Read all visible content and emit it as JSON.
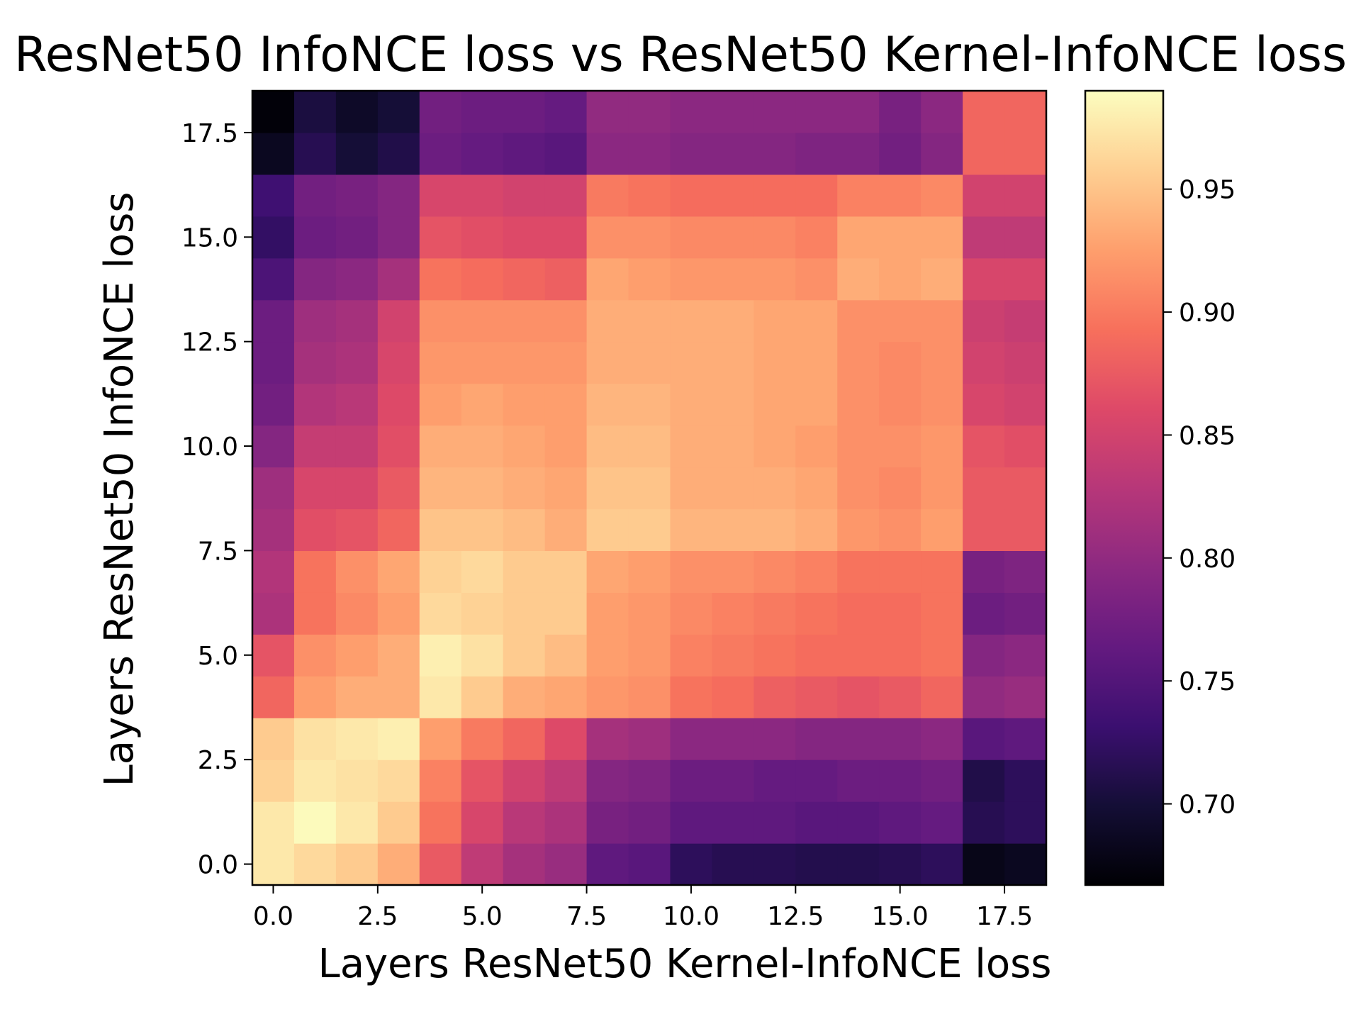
{
  "chart_data": {
    "type": "heatmap",
    "title": "ResNet50 InfoNCE loss vs ResNet50 Kernel-InfoNCE loss",
    "xlabel": "Layers ResNet50 Kernel-InfoNCE loss",
    "ylabel": "Layers ResNet50 InfoNCE loss",
    "colormap": "magma",
    "x_range": [
      -0.5,
      18.5
    ],
    "y_range": [
      -0.5,
      18.5
    ],
    "x_ticks": [
      0.0,
      2.5,
      5.0,
      7.5,
      10.0,
      12.5,
      15.0,
      17.5
    ],
    "x_tick_labels": [
      "0.0",
      "2.5",
      "5.0",
      "7.5",
      "10.0",
      "12.5",
      "15.0",
      "17.5"
    ],
    "y_ticks": [
      0.0,
      2.5,
      5.0,
      7.5,
      10.0,
      12.5,
      15.0,
      17.5
    ],
    "y_tick_labels": [
      "0.0",
      "2.5",
      "5.0",
      "7.5",
      "10.0",
      "12.5",
      "15.0",
      "17.5"
    ],
    "colorbar_range": [
      0.667,
      0.99
    ],
    "colorbar_ticks": [
      0.7,
      0.75,
      0.8,
      0.85,
      0.9,
      0.95
    ],
    "colorbar_tick_labels": [
      "0.70",
      "0.75",
      "0.80",
      "0.85",
      "0.90",
      "0.95"
    ],
    "rows_note": "values[i][j]: i = y layer index (0 at bottom), j = x layer index",
    "values": [
      [
        0.975,
        0.965,
        0.955,
        0.935,
        0.875,
        0.835,
        0.815,
        0.805,
        0.76,
        0.755,
        0.72,
        0.715,
        0.715,
        0.712,
        0.712,
        0.715,
        0.72,
        0.68,
        0.685
      ],
      [
        0.975,
        0.988,
        0.975,
        0.955,
        0.895,
        0.855,
        0.83,
        0.82,
        0.78,
        0.775,
        0.76,
        0.76,
        0.76,
        0.755,
        0.755,
        0.76,
        0.765,
        0.715,
        0.72
      ],
      [
        0.96,
        0.975,
        0.97,
        0.965,
        0.905,
        0.87,
        0.85,
        0.835,
        0.79,
        0.785,
        0.77,
        0.77,
        0.765,
        0.765,
        0.77,
        0.77,
        0.775,
        0.71,
        0.72
      ],
      [
        0.955,
        0.97,
        0.975,
        0.98,
        0.925,
        0.9,
        0.885,
        0.86,
        0.815,
        0.81,
        0.795,
        0.795,
        0.795,
        0.79,
        0.79,
        0.79,
        0.795,
        0.755,
        0.76
      ],
      [
        0.885,
        0.925,
        0.935,
        0.935,
        0.975,
        0.955,
        0.935,
        0.93,
        0.92,
        0.915,
        0.895,
        0.89,
        0.88,
        0.875,
        0.87,
        0.875,
        0.885,
        0.8,
        0.805
      ],
      [
        0.87,
        0.915,
        0.925,
        0.935,
        0.98,
        0.97,
        0.955,
        0.945,
        0.925,
        0.92,
        0.905,
        0.9,
        0.895,
        0.89,
        0.89,
        0.89,
        0.895,
        0.79,
        0.795
      ],
      [
        0.82,
        0.895,
        0.91,
        0.925,
        0.965,
        0.96,
        0.955,
        0.955,
        0.925,
        0.92,
        0.91,
        0.905,
        0.9,
        0.895,
        0.89,
        0.89,
        0.895,
        0.77,
        0.775
      ],
      [
        0.825,
        0.895,
        0.915,
        0.93,
        0.96,
        0.965,
        0.955,
        0.955,
        0.93,
        0.925,
        0.915,
        0.915,
        0.91,
        0.905,
        0.895,
        0.895,
        0.895,
        0.78,
        0.785
      ],
      [
        0.815,
        0.865,
        0.87,
        0.885,
        0.95,
        0.95,
        0.945,
        0.935,
        0.955,
        0.955,
        0.94,
        0.94,
        0.94,
        0.935,
        0.92,
        0.915,
        0.925,
        0.875,
        0.875
      ],
      [
        0.81,
        0.855,
        0.855,
        0.875,
        0.94,
        0.94,
        0.935,
        0.93,
        0.95,
        0.95,
        0.935,
        0.935,
        0.935,
        0.93,
        0.915,
        0.91,
        0.92,
        0.875,
        0.875
      ],
      [
        0.79,
        0.84,
        0.84,
        0.865,
        0.935,
        0.935,
        0.93,
        0.925,
        0.945,
        0.945,
        0.935,
        0.935,
        0.93,
        0.925,
        0.915,
        0.915,
        0.92,
        0.87,
        0.865
      ],
      [
        0.775,
        0.825,
        0.83,
        0.86,
        0.925,
        0.93,
        0.925,
        0.925,
        0.94,
        0.94,
        0.935,
        0.935,
        0.93,
        0.93,
        0.915,
        0.91,
        0.915,
        0.855,
        0.85
      ],
      [
        0.77,
        0.815,
        0.82,
        0.855,
        0.92,
        0.92,
        0.92,
        0.92,
        0.935,
        0.935,
        0.935,
        0.935,
        0.93,
        0.93,
        0.915,
        0.91,
        0.915,
        0.85,
        0.845
      ],
      [
        0.77,
        0.81,
        0.815,
        0.85,
        0.915,
        0.915,
        0.915,
        0.915,
        0.935,
        0.935,
        0.935,
        0.935,
        0.93,
        0.93,
        0.915,
        0.915,
        0.915,
        0.845,
        0.84
      ],
      [
        0.745,
        0.79,
        0.795,
        0.815,
        0.895,
        0.89,
        0.885,
        0.88,
        0.93,
        0.925,
        0.92,
        0.92,
        0.92,
        0.915,
        0.935,
        0.93,
        0.935,
        0.855,
        0.855
      ],
      [
        0.725,
        0.77,
        0.775,
        0.79,
        0.87,
        0.865,
        0.86,
        0.86,
        0.915,
        0.915,
        0.91,
        0.91,
        0.91,
        0.905,
        0.93,
        0.93,
        0.93,
        0.835,
        0.835
      ],
      [
        0.735,
        0.775,
        0.78,
        0.79,
        0.855,
        0.855,
        0.85,
        0.85,
        0.9,
        0.895,
        0.89,
        0.89,
        0.89,
        0.89,
        0.905,
        0.905,
        0.91,
        0.85,
        0.85
      ],
      [
        0.685,
        0.715,
        0.7,
        0.71,
        0.77,
        0.765,
        0.76,
        0.755,
        0.795,
        0.795,
        0.79,
        0.79,
        0.79,
        0.785,
        0.785,
        0.775,
        0.79,
        0.885,
        0.885
      ],
      [
        0.67,
        0.705,
        0.69,
        0.7,
        0.775,
        0.77,
        0.77,
        0.765,
        0.8,
        0.8,
        0.795,
        0.795,
        0.795,
        0.795,
        0.795,
        0.78,
        0.795,
        0.885,
        0.885
      ]
    ]
  }
}
